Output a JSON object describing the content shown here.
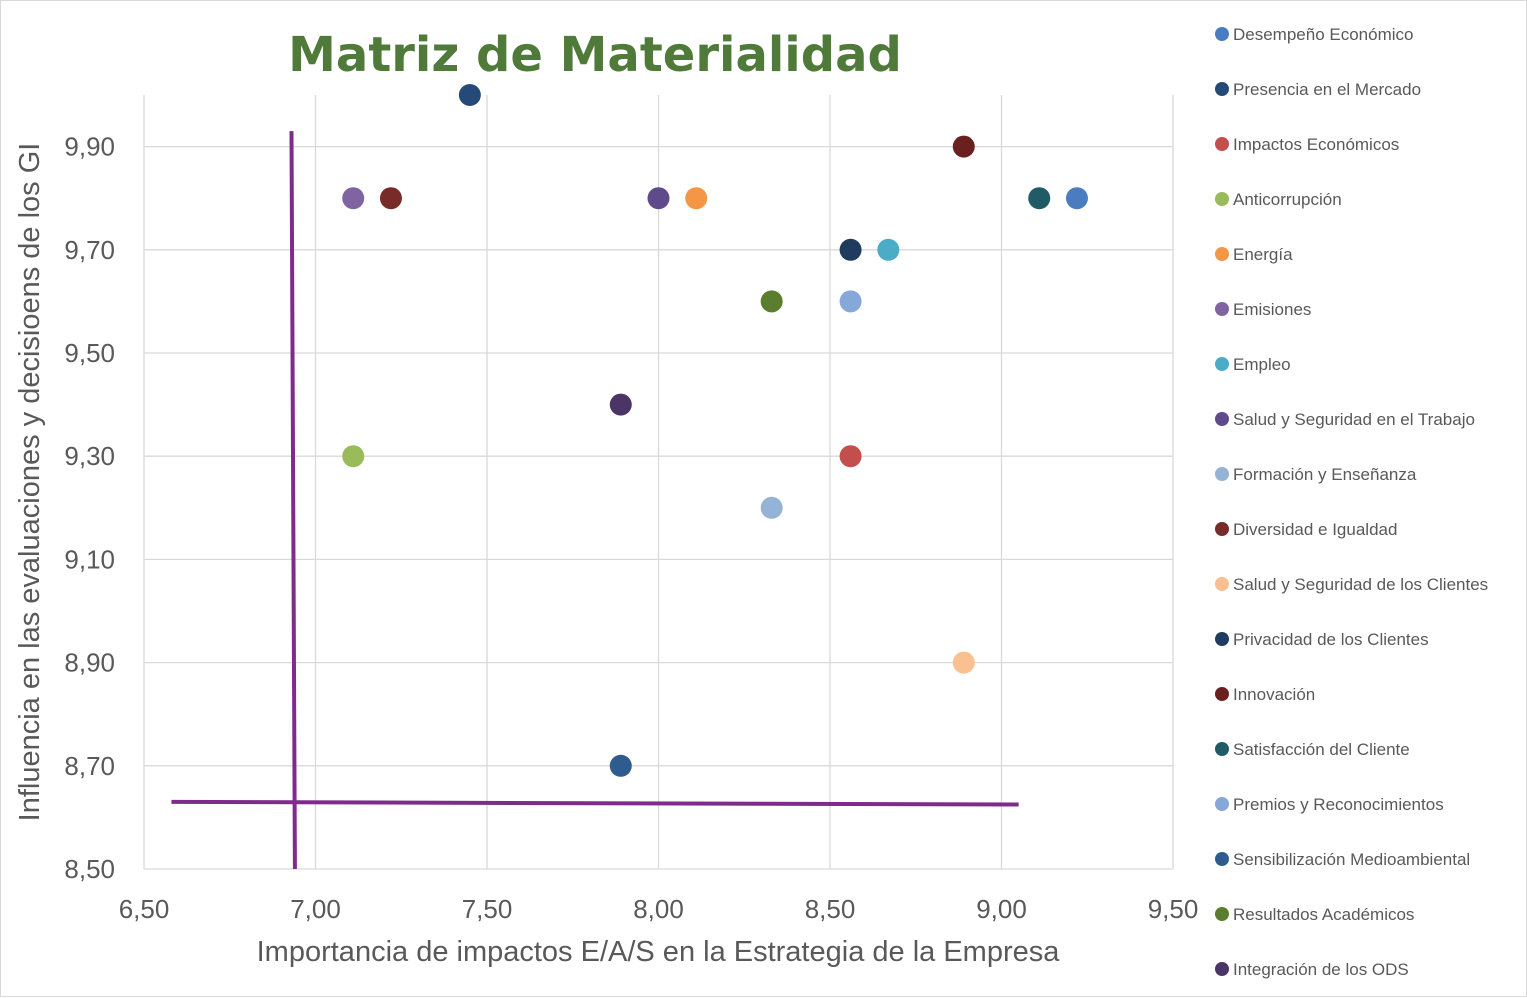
{
  "chart_data": {
    "type": "scatter",
    "title": "Matriz de Materialidad",
    "xlabel": "Importancia de impactos E/A/S en la Estrategia de la Empresa",
    "ylabel": "Influencia en las evaluaciones y decisioens de los GI",
    "xlim": [
      6.5,
      9.5
    ],
    "ylim": [
      8.5,
      10.0
    ],
    "x_ticks": [
      "6,50",
      "7,00",
      "7,50",
      "8,00",
      "8,50",
      "9,00",
      "9,50"
    ],
    "y_ticks": [
      "8,50",
      "8,70",
      "8,90",
      "9,10",
      "9,30",
      "9,50",
      "9,70",
      "9,90"
    ],
    "grid": true,
    "legend_position": "right",
    "threshold_color": "#7f2b8c",
    "threshold_vertical": {
      "x": [
        6.93,
        6.94
      ],
      "y": [
        8.5,
        9.93
      ]
    },
    "threshold_horizontal": {
      "x": [
        6.58,
        9.05
      ],
      "y": [
        8.63,
        8.625
      ]
    },
    "series": [
      {
        "name": "Desempeño Económico",
        "color": "#4a7cc0",
        "points": [
          [
            9.22,
            9.8
          ]
        ]
      },
      {
        "name": "Presencia en el Mercado",
        "color": "#264a78",
        "points": [
          [
            7.45,
            10.0
          ]
        ]
      },
      {
        "name": "Impactos Económicos",
        "color": "#c24f4c",
        "points": [
          [
            8.56,
            9.3
          ]
        ]
      },
      {
        "name": "Anticorrupción",
        "color": "#9abb59",
        "points": [
          [
            7.11,
            9.3
          ]
        ]
      },
      {
        "name": "Energía",
        "color": "#f39646",
        "points": [
          [
            8.11,
            9.8
          ]
        ]
      },
      {
        "name": "Emisiones",
        "color": "#8064a2",
        "points": [
          [
            7.11,
            9.8
          ]
        ]
      },
      {
        "name": "Empleo",
        "color": "#4aacc6",
        "points": [
          [
            8.67,
            9.7
          ]
        ]
      },
      {
        "name": "Salud y Seguridad en el Trabajo",
        "color": "#5f4b8b",
        "points": [
          [
            8.0,
            9.8
          ]
        ]
      },
      {
        "name": "Formación y Enseñanza",
        "color": "#95b3d7",
        "points": [
          [
            8.33,
            9.2
          ]
        ]
      },
      {
        "name": "Diversidad e Igualdad",
        "color": "#772c2a",
        "points": [
          [
            7.22,
            9.8
          ]
        ]
      },
      {
        "name": "Salud y Seguridad de los Clientes",
        "color": "#fac08f",
        "points": [
          [
            8.89,
            8.9
          ]
        ]
      },
      {
        "name": "Privacidad de los Clientes",
        "color": "#1f3b5d",
        "points": [
          [
            8.56,
            9.7
          ]
        ]
      },
      {
        "name": "Innovación",
        "color": "#6b2020",
        "points": [
          [
            8.89,
            9.9
          ]
        ]
      },
      {
        "name": "Satisfacción del Cliente",
        "color": "#215c66",
        "points": [
          [
            9.11,
            9.8
          ]
        ]
      },
      {
        "name": "Premios y Reconocimientos",
        "color": "#86a8d8",
        "points": [
          [
            8.56,
            9.6
          ]
        ]
      },
      {
        "name": "Sensibilización Medioambiental",
        "color": "#2e5c8f",
        "points": [
          [
            7.89,
            8.7
          ]
        ]
      },
      {
        "name": "Resultados Académicos",
        "color": "#5a7d2e",
        "points": [
          [
            8.33,
            9.6
          ]
        ]
      },
      {
        "name": "Integración de los ODS",
        "color": "#4a3566",
        "points": [
          [
            7.89,
            9.4
          ]
        ]
      }
    ]
  }
}
